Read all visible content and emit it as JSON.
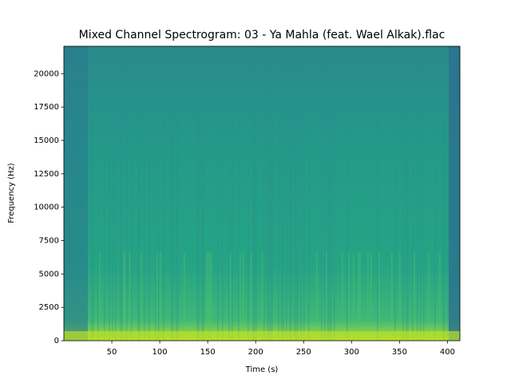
{
  "chart_data": {
    "type": "spectrogram",
    "title": "Mixed Channel Spectrogram: 03 - Ya Mahla (feat. Wael Alkak).flac",
    "xlabel": "Time (s)",
    "ylabel": "Frequency (Hz)",
    "xlim": [
      0,
      413
    ],
    "xticks": [
      50,
      100,
      150,
      200,
      250,
      300,
      350,
      400
    ],
    "ylim": [
      0,
      22050
    ],
    "yticks": [
      0,
      2500,
      5000,
      7500,
      10000,
      12500,
      15000,
      17500,
      20000
    ]
  }
}
